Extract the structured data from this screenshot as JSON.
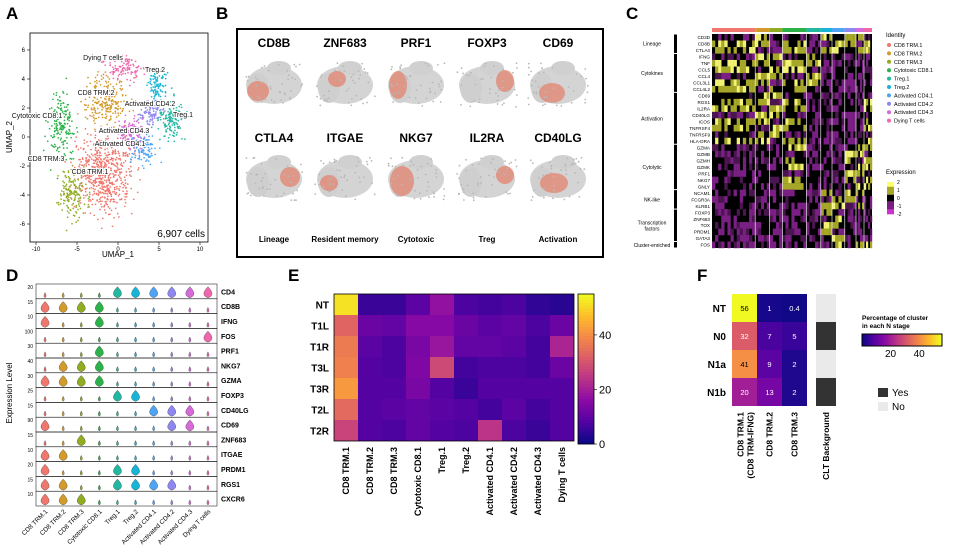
{
  "panels": {
    "A": "A",
    "B": "B",
    "C": "C",
    "D": "D",
    "E": "E",
    "F": "F"
  },
  "colors": {
    "CD8 TRM.1": "#f0776d",
    "CD8 TRM.2": "#d39b2b",
    "CD8 TRM.3": "#8fac22",
    "Cytotoxic CD8.1": "#2db24a",
    "Treg.1": "#21b7a0",
    "Treg.2": "#18b4d6",
    "Activated CD4.1": "#4ea4f2",
    "Activated CD4.2": "#8f87f0",
    "Activated CD4.3": "#d56ad8",
    "Dying T cells": "#f067ad"
  },
  "panelA": {
    "xlabel": "UMAP_1",
    "ylabel": "UMAP_2",
    "cells": "6,907 cells",
    "xticks": [
      "-10",
      "-5",
      "0",
      "5",
      "10"
    ],
    "yticks": [
      "6",
      "4",
      "2",
      "0",
      "-2",
      "-4",
      "-6"
    ],
    "labels": [
      "Dying T cells",
      "Treg.2",
      "CD8 TRM.2",
      "Activated CD4.2",
      "Treg.1",
      "Cytotoxic CD8.1",
      "Activated CD4.3",
      "Activated CD4.1",
      "CD8 TRM.3",
      "CD8 TRM.1"
    ]
  },
  "panelB": {
    "genes_top": [
      "CD8B",
      "ZNF683",
      "PRF1",
      "FOXP3",
      "CD69"
    ],
    "genes_bottom": [
      "CTLA4",
      "ITGAE",
      "NKG7",
      "IL2RA",
      "CD40LG"
    ],
    "categories": [
      "Lineage",
      "Resident memory",
      "Cytotoxic",
      "Treg",
      "Activation"
    ]
  },
  "panelC": {
    "groups": [
      "Lineage",
      "Cytokines",
      "Activation",
      "Cytolytic",
      "NK-like",
      "Transcription factors",
      "Cluster-enriched"
    ],
    "genes": [
      "CD3D",
      "CD8B",
      "CTLA4",
      "IFNG",
      "TNF",
      "CCL5",
      "CCL4",
      "CCL3L1",
      "CCL4L2",
      "CD69",
      "RGS1",
      "IL2RA",
      "CD40LG",
      "ICOS",
      "TNFRSF4",
      "TNFRSF9",
      "HLA-DRA",
      "GZMA",
      "GZMB",
      "GZMH",
      "GZMK",
      "PRF1",
      "NKG7",
      "GNLY",
      "NCAM1",
      "FCGR3A",
      "KLRB1",
      "FOXP3",
      "ZNF683",
      "TOX",
      "PRDM1",
      "GATA3",
      "FOS"
    ],
    "identity_title": "Identity",
    "identities": [
      "CD8 TRM.1",
      "CD8 TRM.2",
      "CD8 TRM.3",
      "Cytotoxic CD8.1",
      "Treg.1",
      "Treg.2",
      "Activated CD4.1",
      "Activated CD4.2",
      "Activated CD4.3",
      "Dying T cells"
    ],
    "expression_title": "Expression",
    "expression_ticks": [
      "2",
      "1",
      "0",
      "-1",
      "-2"
    ]
  },
  "panelD": {
    "ylabel": "Expression Level",
    "genes": [
      "CD4",
      "CD8B",
      "IFNG",
      "FOS",
      "PRF1",
      "NKG7",
      "GZMA",
      "FOXP3",
      "CD40LG",
      "CD69",
      "ZNF683",
      "ITGAE",
      "PRDM1",
      "RGS1",
      "CXCR6"
    ],
    "ymax": [
      "20",
      "15",
      "10",
      "100",
      "30",
      "40",
      "30",
      "25",
      "15",
      "90",
      "15",
      "10",
      "20",
      "15",
      "10"
    ],
    "xlabels": [
      "CD8 TRM.1",
      "CD8 TRM.2",
      "CD8 TRM.3",
      "Cytotoxic CD8.1",
      "Treg.1",
      "Treg.2",
      "Activated CD4.1",
      "Activated CD4.2",
      "Activated CD4.3",
      "Dying T cells"
    ]
  },
  "panelE": {
    "rows": [
      "NT",
      "T1L",
      "T1R",
      "T3L",
      "T3R",
      "T2L",
      "T2R"
    ],
    "cols": [
      "CD8 TRM.1",
      "CD8 TRM.2",
      "CD8 TRM.3",
      "Cytotoxic CD8.1",
      "Treg.1",
      "Treg.2",
      "Activated CD4.1",
      "Activated CD4.2",
      "Activated CD4.3",
      "Dying T cells"
    ],
    "colorbar_ticks": [
      "40",
      "20",
      "0"
    ]
  },
  "panelF": {
    "rows": [
      "NT",
      "N0",
      "N1a",
      "N1b"
    ],
    "cols": [
      "CD8 TRM.1 (CD8 TRM-IFNG)",
      "CD8 TRM.2",
      "CD8 TRM.3"
    ],
    "col_line1": "CD8 TRM.1",
    "col_line2": "(CD8 TRM-IFNG)",
    "values": [
      [
        "56",
        "1",
        "0.4"
      ],
      [
        "32",
        "7",
        "5"
      ],
      [
        "41",
        "9",
        "2"
      ],
      [
        "20",
        "13",
        "2"
      ]
    ],
    "clt_label": "CLT Background",
    "legend_title_1": "Percentage of cluster",
    "legend_title_2": "in each N stage",
    "legend_ticks": [
      "20",
      "40"
    ],
    "legend_yes": "Yes",
    "legend_no": "No"
  },
  "chart_data": [
    {
      "type": "heatmap",
      "title": "Panel E",
      "rows": [
        "NT",
        "T1L",
        "T1R",
        "T3L",
        "T3R",
        "T2L",
        "T2R"
      ],
      "cols": [
        "CD8 TRM.1",
        "CD8 TRM.2",
        "CD8 TRM.3",
        "Cytotoxic CD8.1",
        "Treg.1",
        "Treg.2",
        "Activated CD4.1",
        "Activated CD4.2",
        "Activated CD4.3",
        "Dying T cells"
      ],
      "values": [
        [
          52,
          5,
          5,
          9,
          17,
          7,
          6,
          7,
          4,
          3
        ],
        [
          33,
          11,
          10,
          15,
          15,
          11,
          9,
          10,
          7,
          11
        ],
        [
          37,
          9,
          7,
          13,
          18,
          10,
          10,
          9,
          6,
          21
        ],
        [
          38,
          8,
          7,
          14,
          28,
          6,
          7,
          7,
          6,
          11
        ],
        [
          42,
          8,
          8,
          13,
          8,
          5,
          8,
          8,
          8,
          8
        ],
        [
          34,
          8,
          9,
          10,
          9,
          8,
          6,
          9,
          6,
          8
        ],
        [
          27,
          8,
          7,
          10,
          8,
          7,
          24,
          7,
          5,
          8
        ]
      ],
      "vmin": 0,
      "vmax": 55
    },
    {
      "type": "heatmap",
      "title": "Panel F",
      "rows": [
        "NT",
        "N0",
        "N1a",
        "N1b"
      ],
      "cols": [
        "CD8 TRM.1 (CD8 TRM-IFNG)",
        "CD8 TRM.2",
        "CD8 TRM.3"
      ],
      "values": [
        [
          56,
          1,
          0.4
        ],
        [
          32,
          7,
          5
        ],
        [
          41,
          9,
          2
        ],
        [
          20,
          13,
          2
        ]
      ],
      "clt_background": [
        "No",
        "Yes",
        "No",
        "Yes"
      ],
      "vmin": 0,
      "vmax": 56
    }
  ]
}
